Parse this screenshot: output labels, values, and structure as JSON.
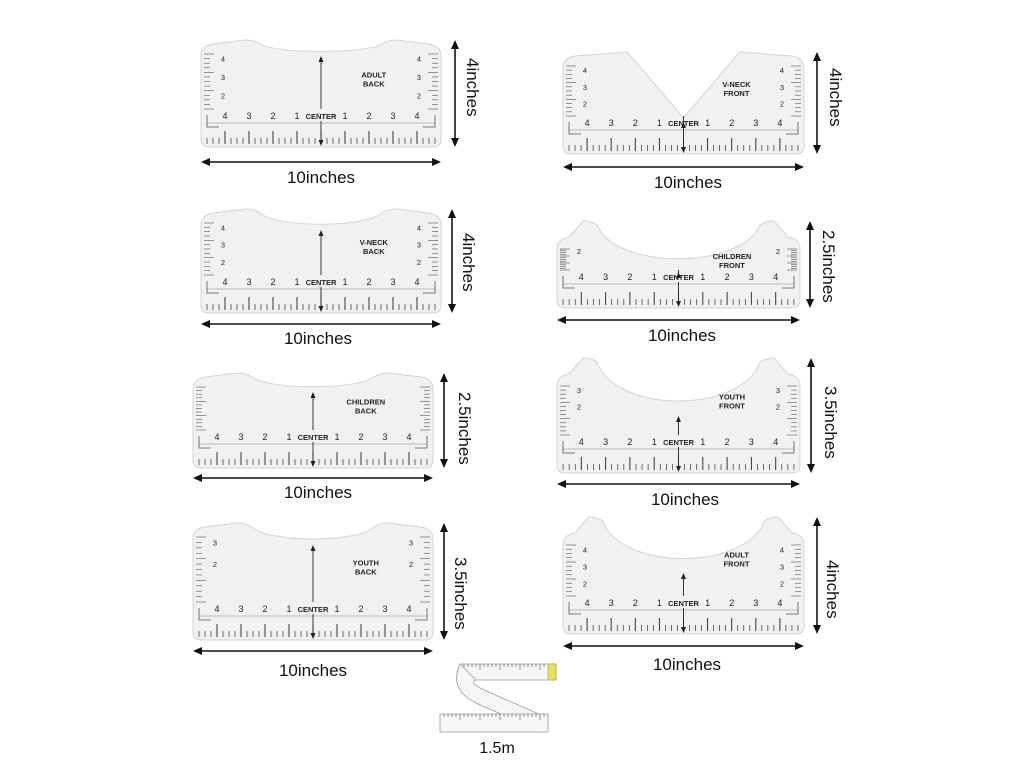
{
  "rulers": [
    {
      "name": "adult-back",
      "line1": "ADULT",
      "line2": "BACK",
      "shape": "u",
      "labelSide": "right",
      "width_label": "10inches",
      "height_label": "4inches",
      "side_numbers": [
        "4",
        "3",
        "2"
      ]
    },
    {
      "name": "v-neck-front",
      "line1": "V-NECK",
      "line2": "FRONT",
      "shape": "v",
      "labelSide": "right",
      "width_label": "10inches",
      "height_label": "4inches",
      "side_numbers": [
        "4",
        "3",
        "2"
      ]
    },
    {
      "name": "v-neck-back",
      "line1": "V-NECK",
      "line2": "BACK",
      "shape": "u",
      "labelSide": "right",
      "width_label": "10inches",
      "height_label": "4inches",
      "side_numbers": [
        "4",
        "3",
        "2"
      ]
    },
    {
      "name": "children-front",
      "line1": "CHILDREN",
      "line2": "FRONT",
      "shape": "deepu",
      "labelSide": "right",
      "width_label": "10inches",
      "height_label": "2.5inches",
      "side_numbers": [
        "2"
      ]
    },
    {
      "name": "children-back",
      "line1": "CHILDREN",
      "line2": "BACK",
      "shape": "u",
      "labelSide": "right",
      "width_label": "10inches",
      "height_label": "2.5inches",
      "side_numbers": []
    },
    {
      "name": "youth-front",
      "line1": "YOUTH",
      "line2": "FRONT",
      "shape": "deepu",
      "labelSide": "right",
      "width_label": "10inches",
      "height_label": "3.5inches",
      "side_numbers": [
        "3",
        "2"
      ]
    },
    {
      "name": "youth-back",
      "line1": "YOUTH",
      "line2": "BACK",
      "shape": "u",
      "labelSide": "right",
      "width_label": "10inches",
      "height_label": "3.5inches",
      "side_numbers": [
        "3",
        "2"
      ]
    },
    {
      "name": "adult-front",
      "line1": "ADULT",
      "line2": "FRONT",
      "shape": "deepu",
      "labelSide": "right",
      "width_label": "10inches",
      "height_label": "4inches",
      "side_numbers": [
        "4",
        "3",
        "2"
      ]
    }
  ],
  "scale_numbers": [
    "4",
    "3",
    "2",
    "1",
    "1",
    "2",
    "3",
    "4"
  ],
  "center_label": "CENTER",
  "tape": {
    "label": "1.5m"
  },
  "colors": {
    "ruler_fill": "#f1f1f1",
    "ruler_edge": "#d4d4d4",
    "ink": "#222222",
    "tape_fill": "#f6f6f6"
  }
}
